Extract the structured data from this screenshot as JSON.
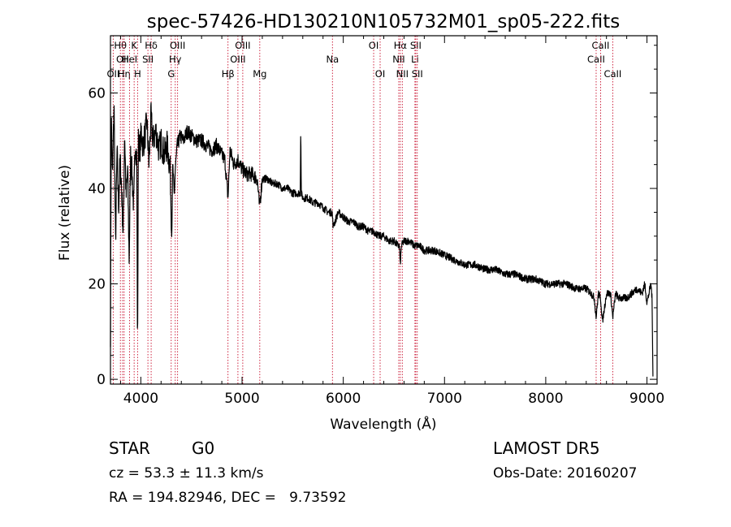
{
  "chart_data": {
    "type": "line",
    "title": "spec-57426-HD130210N105732M01_sp05-222.fits",
    "xlabel": "Wavelength (Å)",
    "ylabel": "Flux (relative)",
    "xlim": [
      3700,
      9100
    ],
    "ylim": [
      -1,
      72
    ],
    "xticks": [
      4000,
      5000,
      6000,
      7000,
      8000,
      9000
    ],
    "yticks": [
      0,
      20,
      40,
      60
    ],
    "grid": false,
    "series": [
      {
        "x": [
          3700,
          3708,
          3720,
          3735,
          3750,
          3765,
          3780,
          3795,
          3810,
          3825,
          3840,
          3855,
          3870,
          3885,
          3900,
          3915,
          3930,
          3945,
          3960,
          3968,
          3975,
          3990,
          4005,
          4020,
          4040,
          4060,
          4080,
          4100,
          4120,
          4150,
          4180,
          4200,
          4230,
          4260,
          4290,
          4305,
          4315,
          4330,
          4340,
          4360,
          4390,
          4420,
          4460,
          4500,
          4550,
          4600,
          4650,
          4700,
          4750,
          4800,
          4830,
          4861,
          4880,
          4920,
          4960,
          5000,
          5050,
          5100,
          5150,
          5172,
          5200,
          5250,
          5300,
          5350,
          5400,
          5450,
          5500,
          5550,
          5575,
          5580,
          5585,
          5600,
          5650,
          5700,
          5750,
          5800,
          5850,
          5890,
          5900,
          5950,
          6000,
          6050,
          6100,
          6150,
          6200,
          6250,
          6300,
          6350,
          6400,
          6450,
          6500,
          6540,
          6555,
          6563,
          6575,
          6600,
          6650,
          6700,
          6750,
          6800,
          6900,
          7000,
          7100,
          7200,
          7300,
          7400,
          7500,
          7600,
          7700,
          7800,
          7900,
          8000,
          8100,
          8200,
          8300,
          8400,
          8450,
          8480,
          8498,
          8520,
          8542,
          8560,
          8600,
          8640,
          8662,
          8690,
          8720,
          8760,
          8800,
          8850,
          8900,
          8950,
          8980,
          9000,
          9020,
          9040,
          9050,
          9060
        ],
        "y": [
          10,
          55,
          42,
          58,
          28,
          48,
          36,
          46,
          40,
          30,
          52,
          38,
          44,
          25,
          48,
          42,
          36,
          50,
          46,
          4,
          50,
          48,
          52,
          49,
          51,
          54,
          45,
          55,
          50,
          52,
          48,
          50,
          47,
          49,
          44,
          30,
          45,
          38,
          44,
          49,
          51,
          50,
          52,
          51,
          50,
          50,
          49,
          48,
          49,
          47,
          46,
          38,
          48,
          45,
          46,
          44,
          43,
          43,
          42,
          36,
          42,
          42,
          41,
          41,
          40,
          40,
          39,
          39,
          39,
          54,
          39,
          38,
          38,
          37,
          37,
          36,
          35,
          35,
          32,
          35,
          34,
          33,
          33,
          32,
          32,
          31,
          31,
          30,
          30,
          29,
          29,
          28,
          28,
          24,
          28,
          29,
          29,
          28,
          28,
          27,
          27,
          26,
          25,
          24,
          24,
          23,
          23,
          22,
          22,
          21,
          21,
          20,
          20,
          20,
          19,
          19,
          18,
          17,
          13,
          18,
          17,
          12,
          18,
          18,
          13,
          18,
          17,
          17,
          17,
          18,
          19,
          18,
          20,
          16,
          18,
          20,
          17,
          0
        ]
      }
    ],
    "emission_lines": [
      {
        "wave": 3727,
        "label": "OII",
        "row": 3
      },
      {
        "wave": 3798,
        "label": "Hθ",
        "row": 1
      },
      {
        "wave": 3820,
        "label": "OII",
        "row": 2
      },
      {
        "wave": 3835,
        "label": "Hη",
        "row": 3
      },
      {
        "wave": 3889,
        "label": "HeI",
        "row": 2
      },
      {
        "wave": 3934,
        "label": "K",
        "row": 1
      },
      {
        "wave": 3968,
        "label": "H",
        "row": 3
      },
      {
        "wave": 4070,
        "label": "SII",
        "row": 2
      },
      {
        "wave": 4102,
        "label": "Hδ",
        "row": 1
      },
      {
        "wave": 4300,
        "label": "G",
        "row": 3
      },
      {
        "wave": 4340,
        "label": "Hγ",
        "row": 2
      },
      {
        "wave": 4363,
        "label": "OIII",
        "row": 1
      },
      {
        "wave": 4861,
        "label": "Hβ",
        "row": 3
      },
      {
        "wave": 4959,
        "label": "OIII",
        "row": 2
      },
      {
        "wave": 5007,
        "label": "OIII",
        "row": 1
      },
      {
        "wave": 5175,
        "label": "Mg",
        "row": 3
      },
      {
        "wave": 5893,
        "label": "Na",
        "row": 2
      },
      {
        "wave": 6300,
        "label": "OI",
        "row": 1
      },
      {
        "wave": 6364,
        "label": "OI",
        "row": 3
      },
      {
        "wave": 6548,
        "label": "NII",
        "row": 2
      },
      {
        "wave": 6563,
        "label": "Hα",
        "row": 1
      },
      {
        "wave": 6583,
        "label": "NII",
        "row": 3
      },
      {
        "wave": 6708,
        "label": "Li",
        "row": 2
      },
      {
        "wave": 6716,
        "label": "SII",
        "row": 1
      },
      {
        "wave": 6731,
        "label": "SII",
        "row": 3
      },
      {
        "wave": 8498,
        "label": "CaII",
        "row": 2
      },
      {
        "wave": 8542,
        "label": "CaII",
        "row": 1
      },
      {
        "wave": 8662,
        "label": "CaII",
        "row": 3
      }
    ]
  },
  "footer": {
    "object_class": "STAR",
    "subclass": "G0",
    "survey": "LAMOST DR5",
    "cz": "cz = 53.3 ± 11.3 km/s",
    "obs_date": "Obs-Date: 20160207",
    "coords": "RA = 194.82946, DEC =   9.73592"
  }
}
